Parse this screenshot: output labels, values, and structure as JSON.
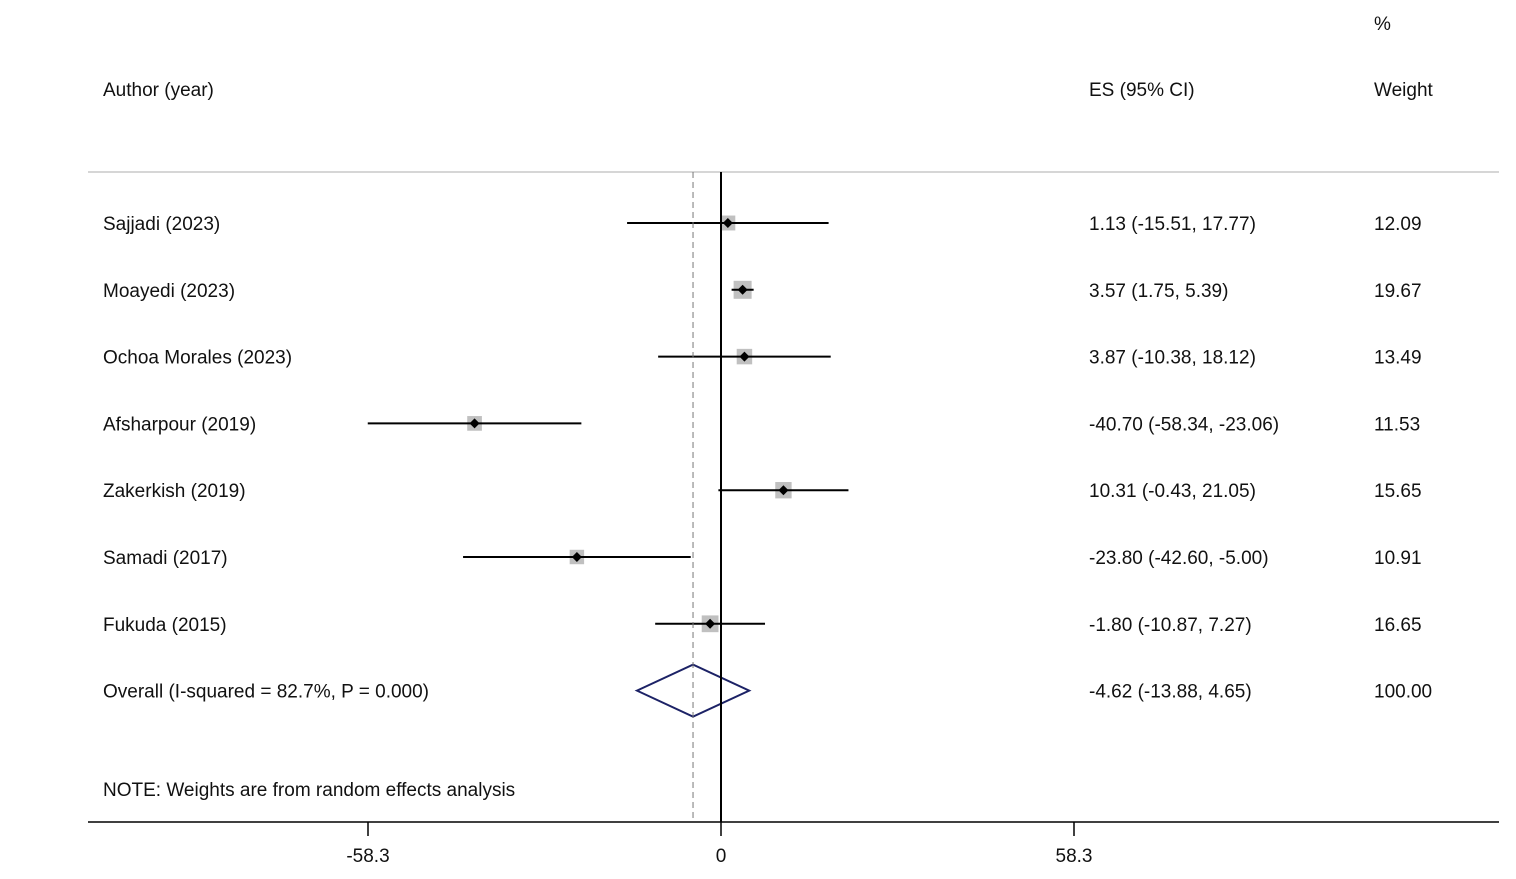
{
  "chart_data": {
    "type": "forest",
    "headers": {
      "study": "Author (year)",
      "es": "ES (95% CI)",
      "weight_top": "%",
      "weight": "Weight"
    },
    "studies": [
      {
        "label": "Sajjadi (2023)",
        "es": 1.13,
        "lo": -15.51,
        "hi": 17.77,
        "weight": 12.09,
        "es_text": "1.13 (-15.51, 17.77)",
        "weight_text": "12.09"
      },
      {
        "label": "Moayedi (2023)",
        "es": 3.57,
        "lo": 1.75,
        "hi": 5.39,
        "weight": 19.67,
        "es_text": "3.57 (1.75, 5.39)",
        "weight_text": "19.67"
      },
      {
        "label": "Ochoa Morales (2023)",
        "es": 3.87,
        "lo": -10.38,
        "hi": 18.12,
        "weight": 13.49,
        "es_text": "3.87 (-10.38, 18.12)",
        "weight_text": "13.49"
      },
      {
        "label": "Afsharpour (2019)",
        "es": -40.7,
        "lo": -58.34,
        "hi": -23.06,
        "weight": 11.53,
        "es_text": "-40.70 (-58.34, -23.06)",
        "weight_text": "11.53"
      },
      {
        "label": "Zakerkish (2019)",
        "es": 10.31,
        "lo": -0.43,
        "hi": 21.05,
        "weight": 15.65,
        "es_text": "10.31 (-0.43, 21.05)",
        "weight_text": "15.65"
      },
      {
        "label": "Samadi (2017)",
        "es": -23.8,
        "lo": -42.6,
        "hi": -5.0,
        "weight": 10.91,
        "es_text": "-23.80 (-42.60, -5.00)",
        "weight_text": "10.91"
      },
      {
        "label": "Fukuda (2015)",
        "es": -1.8,
        "lo": -10.87,
        "hi": 7.27,
        "weight": 16.65,
        "es_text": "-1.80 (-10.87, 7.27)",
        "weight_text": "16.65"
      }
    ],
    "overall": {
      "label": "Overall  (I-squared = 82.7%, P = 0.000)",
      "es": -4.62,
      "lo": -13.88,
      "hi": 4.65,
      "es_text": "-4.62 (-13.88, 4.65)",
      "weight_text": "100.00"
    },
    "note": "NOTE: Weights are from random effects analysis",
    "x_ticks": [
      {
        "value": -58.3,
        "label": "-58.3"
      },
      {
        "value": 0,
        "label": "0"
      },
      {
        "value": 58.3,
        "label": "58.3"
      }
    ],
    "null_line": 0,
    "colors": {
      "diamond": "#1c2266",
      "box": "#c0c0c0",
      "line": "#000000",
      "dashed": "#777777",
      "rule": "#c8c8c8"
    }
  }
}
